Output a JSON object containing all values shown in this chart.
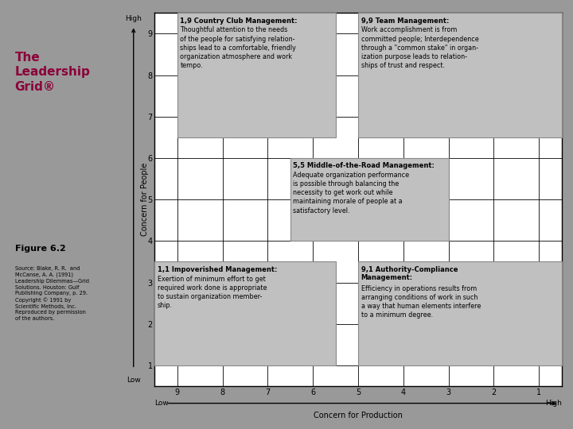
{
  "title": "The\nLeadership\nGrid®",
  "title_color": "#8B0039",
  "figure_label": "Figure 6.2",
  "source_text": "Source: Blake, R. R.  and\nMcCanse, A. A. (1991)\nLeadership Dilemmas—Grid\nSolutions. Houston: Gulf\nPublishing Company, p. 29.\nCopyright © 1991 by\nScientific Methods, Inc.\nReproduced by permission\nof the authors.",
  "bg_color": "#999999",
  "grid_bg": "#ffffff",
  "box_color": "#c0c0c0",
  "box_edge_color": "#888888",
  "grid_line_color": "#000000",
  "ylabel": "Concern for People",
  "xlabel": "Concern for Production",
  "y_high": "High",
  "y_low": "Low",
  "x_low": "Low",
  "x_high": "High",
  "box_specs": [
    {
      "gx1": 9.0,
      "gy1": 6.5,
      "gx2": 5.5,
      "gy2": 9.5,
      "label": "1,9 Country Club Management:",
      "body": "Thoughtful attention to the needs\nof the people for satisfying relation-\nships lead to a comfortable, friendly\norganization atmosphere and work\ntempo."
    },
    {
      "gx1": 5.0,
      "gy1": 6.5,
      "gx2": 0.5,
      "gy2": 9.5,
      "label": "9,9 Team Management:",
      "body": "Work accomplishment is from\ncommitted people; Interdependence\nthrough a \"common stake\" in organ-\nization purpose leads to relation-\nships of trust and respect."
    },
    {
      "gx1": 6.5,
      "gy1": 4.0,
      "gx2": 3.0,
      "gy2": 6.0,
      "label": "5,5 Middle-of-the-Road Management:",
      "body": "Adequate organization performance\nis possible through balancing the\nnecessity to get work out while\nmaintaining morale of people at a\nsatisfactory level."
    },
    {
      "gx1": 9.5,
      "gy1": 1.0,
      "gx2": 5.5,
      "gy2": 3.5,
      "label": "1,1 Impoverished Management:",
      "body": "Exertion of minimum effort to get\nrequired work done is appropriate\nto sustain organization member-\nship."
    },
    {
      "gx1": 5.0,
      "gy1": 1.0,
      "gx2": 0.5,
      "gy2": 3.5,
      "label": "9,1 Authority-Compliance\nManagement:",
      "body": "Efficiency in operations results from\narranging conditions of work in such\na way that human elements interfere\nto a minimum degree."
    }
  ]
}
